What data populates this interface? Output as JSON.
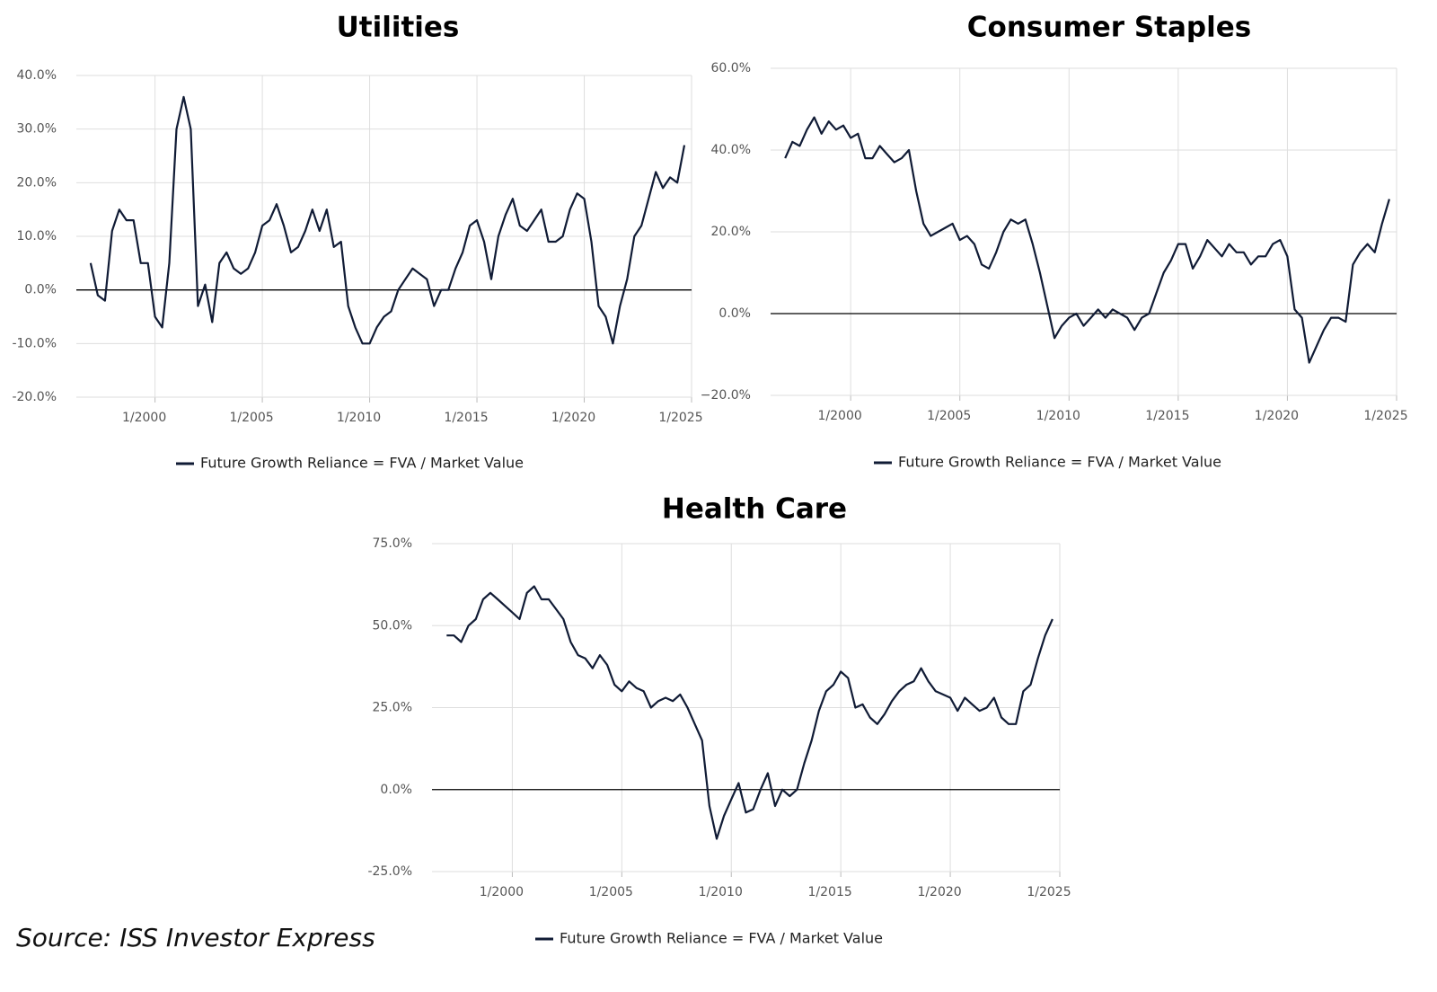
{
  "source": "Source: ISS Investor Express",
  "chart_data": [
    {
      "type": "line",
      "title": "Utilities",
      "x": [
        "1/1997",
        "5/1997",
        "9/1997",
        "1/1998",
        "5/1998",
        "9/1998",
        "1/1999",
        "5/1999",
        "9/1999",
        "1/2000",
        "5/2000",
        "9/2000",
        "1/2001",
        "5/2001",
        "9/2001",
        "1/2002",
        "5/2002",
        "9/2002",
        "1/2003",
        "5/2003",
        "9/2003",
        "1/2004",
        "5/2004",
        "9/2004",
        "1/2005",
        "5/2005",
        "9/2005",
        "1/2006",
        "5/2006",
        "9/2006",
        "1/2007",
        "5/2007",
        "9/2007",
        "1/2008",
        "5/2008",
        "9/2008",
        "1/2009",
        "5/2009",
        "9/2009",
        "1/2010",
        "5/2010",
        "9/2010",
        "1/2011",
        "5/2011",
        "9/2011",
        "1/2012",
        "5/2012",
        "9/2012",
        "1/2013",
        "5/2013",
        "9/2013",
        "1/2014",
        "5/2014",
        "9/2014",
        "1/2015",
        "5/2015",
        "9/2015",
        "1/2016",
        "5/2016",
        "9/2016",
        "1/2017",
        "5/2017",
        "9/2017",
        "1/2018",
        "5/2018",
        "9/2018",
        "1/2019",
        "5/2019",
        "9/2019",
        "1/2020",
        "5/2020",
        "9/2020",
        "1/2021",
        "5/2021",
        "9/2021",
        "1/2022",
        "5/2022",
        "9/2022",
        "1/2023",
        "5/2023",
        "9/2023",
        "1/2024",
        "5/2024",
        "9/2024"
      ],
      "series": [
        {
          "name": "Future Growth Reliance = FVA / Market Value",
          "color": "#101b35",
          "values": [
            5,
            -1,
            -2,
            11,
            15,
            13,
            13,
            5,
            5,
            -5,
            -7,
            5,
            30,
            36,
            30,
            -3,
            1,
            -6,
            5,
            7,
            4,
            3,
            4,
            7,
            12,
            13,
            16,
            12,
            7,
            8,
            11,
            15,
            11,
            15,
            8,
            9,
            -3,
            -7,
            -10,
            -10,
            -7,
            -5,
            -4,
            0,
            2,
            4,
            3,
            2,
            -3,
            0,
            0,
            4,
            7,
            12,
            13,
            9,
            2,
            10,
            14,
            17,
            12,
            11,
            13,
            15,
            9,
            9,
            10,
            15,
            18,
            17,
            9,
            -3,
            -5,
            -10,
            -3,
            2,
            10,
            12,
            17,
            22,
            19,
            21,
            20,
            27
          ]
        }
      ],
      "xlim": [
        "5/1996",
        "1/2025"
      ],
      "xticks": [
        "1/2000",
        "1/2005",
        "1/2010",
        "1/2015",
        "1/2020",
        "1/2025"
      ],
      "ylim": [
        -20,
        40
      ],
      "yticks": [
        {
          "value": -20,
          "label": "-20.0%"
        },
        {
          "value": -10,
          "label": "-10.0%"
        },
        {
          "value": 0,
          "label": "0.0%"
        },
        {
          "value": 10,
          "label": "10.0%"
        },
        {
          "value": 20,
          "label": "20.0%"
        },
        {
          "value": 30,
          "label": "30.0%"
        },
        {
          "value": 40,
          "label": "40.0%"
        }
      ],
      "grid": true,
      "legend": "bottom"
    },
    {
      "type": "line",
      "title": "Consumer Staples",
      "x": [
        "1/1997",
        "5/1997",
        "9/1997",
        "1/1998",
        "5/1998",
        "9/1998",
        "1/1999",
        "5/1999",
        "9/1999",
        "1/2000",
        "5/2000",
        "9/2000",
        "1/2001",
        "5/2001",
        "9/2001",
        "1/2002",
        "5/2002",
        "9/2002",
        "1/2003",
        "5/2003",
        "9/2003",
        "1/2004",
        "5/2004",
        "9/2004",
        "1/2005",
        "5/2005",
        "9/2005",
        "1/2006",
        "5/2006",
        "9/2006",
        "1/2007",
        "5/2007",
        "9/2007",
        "1/2008",
        "5/2008",
        "9/2008",
        "1/2009",
        "5/2009",
        "9/2009",
        "1/2010",
        "5/2010",
        "9/2010",
        "1/2011",
        "5/2011",
        "9/2011",
        "1/2012",
        "5/2012",
        "9/2012",
        "1/2013",
        "5/2013",
        "9/2013",
        "1/2014",
        "5/2014",
        "9/2014",
        "1/2015",
        "5/2015",
        "9/2015",
        "1/2016",
        "5/2016",
        "9/2016",
        "1/2017",
        "5/2017",
        "9/2017",
        "1/2018",
        "5/2018",
        "9/2018",
        "1/2019",
        "5/2019",
        "9/2019",
        "1/2020",
        "5/2020",
        "9/2020",
        "1/2021",
        "5/2021",
        "9/2021",
        "1/2022",
        "5/2022",
        "9/2022",
        "1/2023",
        "5/2023",
        "9/2023",
        "1/2024",
        "5/2024",
        "9/2024"
      ],
      "series": [
        {
          "name": "Future Growth Reliance = FVA / Market Value",
          "color": "#101b35",
          "values": [
            38,
            42,
            41,
            45,
            48,
            44,
            47,
            45,
            46,
            43,
            44,
            38,
            38,
            41,
            39,
            37,
            38,
            40,
            30,
            22,
            19,
            20,
            21,
            22,
            18,
            19,
            17,
            12,
            11,
            15,
            20,
            23,
            22,
            23,
            17,
            10,
            2,
            -6,
            -3,
            -1,
            0,
            -3,
            -1,
            1,
            -1,
            1,
            0,
            -1,
            -4,
            -1,
            0,
            5,
            10,
            13,
            17,
            17,
            11,
            14,
            18,
            16,
            14,
            17,
            15,
            15,
            12,
            14,
            14,
            17,
            18,
            14,
            1,
            -1,
            -12,
            -8,
            -4,
            -1,
            -1,
            -2,
            12,
            15,
            17,
            15,
            22,
            28
          ]
        }
      ],
      "xlim": [
        "5/1996",
        "1/2025"
      ],
      "xticks": [
        "1/2000",
        "1/2005",
        "1/2010",
        "1/2015",
        "1/2020",
        "1/2025"
      ],
      "ylim": [
        -20,
        60
      ],
      "yticks": [
        {
          "value": -20,
          "label": "−20.0%"
        },
        {
          "value": 0,
          "label": "0.0%"
        },
        {
          "value": 20,
          "label": "20.0%"
        },
        {
          "value": 40,
          "label": "40.0%"
        },
        {
          "value": 60,
          "label": "60.0%"
        }
      ],
      "grid": true,
      "legend": "bottom"
    },
    {
      "type": "line",
      "title": "Health Care",
      "x": [
        "1/1997",
        "5/1997",
        "9/1997",
        "1/1998",
        "5/1998",
        "9/1998",
        "1/1999",
        "5/1999",
        "9/1999",
        "1/2000",
        "5/2000",
        "9/2000",
        "1/2001",
        "5/2001",
        "9/2001",
        "1/2002",
        "5/2002",
        "9/2002",
        "1/2003",
        "5/2003",
        "9/2003",
        "1/2004",
        "5/2004",
        "9/2004",
        "1/2005",
        "5/2005",
        "9/2005",
        "1/2006",
        "5/2006",
        "9/2006",
        "1/2007",
        "5/2007",
        "9/2007",
        "1/2008",
        "5/2008",
        "9/2008",
        "1/2009",
        "5/2009",
        "9/2009",
        "1/2010",
        "5/2010",
        "9/2010",
        "1/2011",
        "5/2011",
        "9/2011",
        "1/2012",
        "5/2012",
        "9/2012",
        "1/2013",
        "5/2013",
        "9/2013",
        "1/2014",
        "5/2014",
        "9/2014",
        "1/2015",
        "5/2015",
        "9/2015",
        "1/2016",
        "5/2016",
        "9/2016",
        "1/2017",
        "5/2017",
        "9/2017",
        "1/2018",
        "5/2018",
        "9/2018",
        "1/2019",
        "5/2019",
        "9/2019",
        "1/2020",
        "5/2020",
        "9/2020",
        "1/2021",
        "5/2021",
        "9/2021",
        "1/2022",
        "5/2022",
        "9/2022",
        "1/2023",
        "5/2023",
        "9/2023",
        "1/2024",
        "5/2024",
        "9/2024"
      ],
      "series": [
        {
          "name": "Future Growth Reliance = FVA / Market Value",
          "color": "#101b35",
          "values": [
            47,
            47,
            45,
            50,
            52,
            58,
            60,
            58,
            56,
            54,
            52,
            60,
            62,
            58,
            58,
            55,
            52,
            45,
            41,
            40,
            37,
            41,
            38,
            32,
            30,
            33,
            31,
            30,
            25,
            27,
            28,
            27,
            29,
            25,
            20,
            15,
            -5,
            -15,
            -8,
            -3,
            2,
            -7,
            -6,
            0,
            5,
            -5,
            0,
            -2,
            0,
            8,
            15,
            24,
            30,
            32,
            36,
            34,
            25,
            26,
            22,
            20,
            23,
            27,
            30,
            32,
            33,
            37,
            33,
            30,
            29,
            28,
            24,
            28,
            26,
            24,
            25,
            28,
            22,
            20,
            20,
            30,
            32,
            40,
            47,
            52
          ]
        }
      ],
      "xlim": [
        "5/1996",
        "1/2025"
      ],
      "xticks": [
        "1/2000",
        "1/2005",
        "1/2010",
        "1/2015",
        "1/2020",
        "1/2025"
      ],
      "ylim": [
        -25,
        75
      ],
      "yticks": [
        {
          "value": -25,
          "label": "-25.0%"
        },
        {
          "value": 0,
          "label": "0.0%"
        },
        {
          "value": 25,
          "label": "25.0%"
        },
        {
          "value": 50,
          "label": "50.0%"
        },
        {
          "value": 75,
          "label": "75.0%"
        }
      ],
      "grid": true,
      "legend": "bottom"
    }
  ]
}
